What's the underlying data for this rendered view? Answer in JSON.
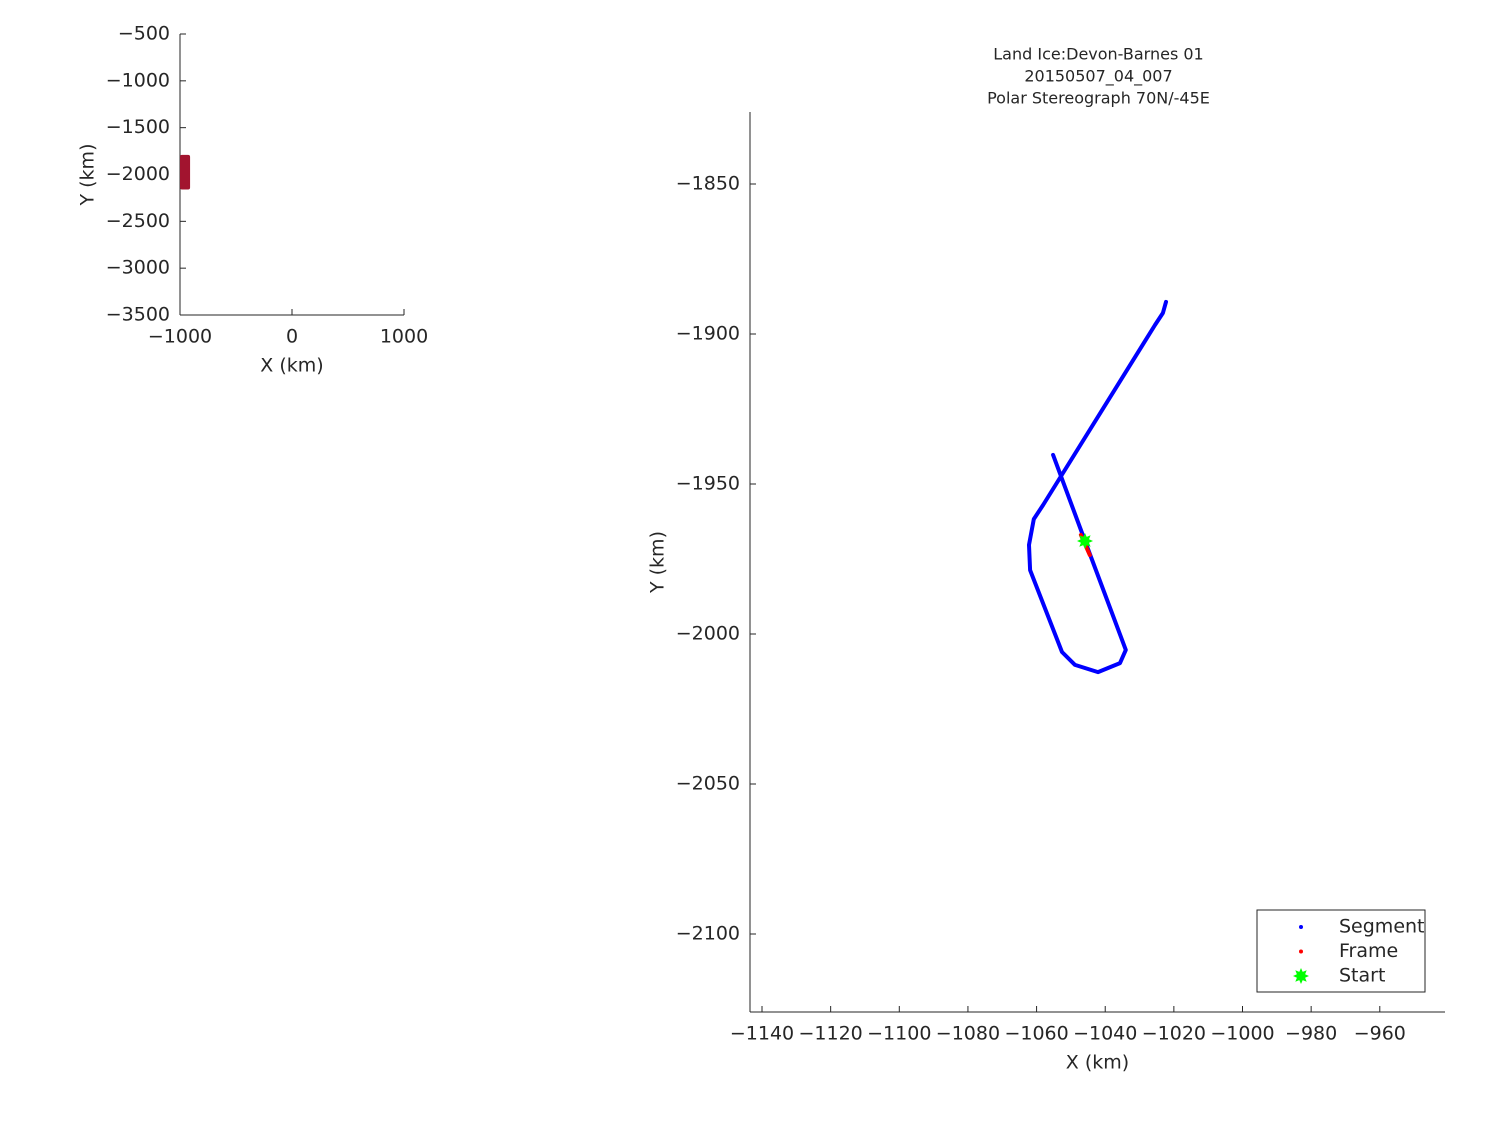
{
  "chart_data": [
    {
      "type": "rect",
      "x": [
        -1000,
        -910
      ],
      "values": [
        -2160,
        -1790
      ],
      "color": "#a2142f",
      "xlabel": "X (km)",
      "ylabel": "Y (km)",
      "xlim": [
        -1000,
        1000
      ],
      "ylim": [
        -3500,
        -500
      ],
      "xticks": [
        {
          "value": -1000,
          "label": "−1000"
        },
        0,
        1000
      ],
      "yticks": [
        {
          "value": -500,
          "label": "−500"
        },
        {
          "value": -1000,
          "label": "−1000"
        },
        {
          "value": -1500,
          "label": "−1500"
        },
        {
          "value": -2000,
          "label": "−2000"
        },
        {
          "value": -2500,
          "label": "−2500"
        },
        {
          "value": -3000,
          "label": "−3000"
        },
        {
          "value": -3500,
          "label": "−3500"
        }
      ]
    },
    {
      "type": "line",
      "title": [
        "Land Ice:Devon-Barnes 01",
        "20150507_04_007",
        "Polar Stereograph 70N/-45E"
      ],
      "xlabel": "X (km)",
      "ylabel": "Y (km)",
      "xlim": [
        -1143.5,
        -941
      ],
      "ylim": [
        -2126,
        -1826
      ],
      "xticks": [
        {
          "value": -1140,
          "label": "−1140"
        },
        {
          "value": -1120,
          "label": "−1120"
        },
        {
          "value": -1100,
          "label": "−1100"
        },
        {
          "value": -1080,
          "label": "−1080"
        },
        {
          "value": -1060,
          "label": "−1060"
        },
        {
          "value": -1040,
          "label": "−1040"
        },
        {
          "value": -1020,
          "label": "−1020"
        },
        {
          "value": -1000,
          "label": "−1000"
        },
        {
          "value": -980,
          "label": "−980"
        },
        {
          "value": -960,
          "label": "−960"
        }
      ],
      "yticks": [
        {
          "value": -1850,
          "label": "−1850"
        },
        {
          "value": -1900,
          "label": "−1900"
        },
        {
          "value": -1950,
          "label": "−1950"
        },
        {
          "value": -2000,
          "label": "−2000"
        },
        {
          "value": -2050,
          "label": "−2050"
        },
        {
          "value": -2100,
          "label": "−2100"
        }
      ],
      "legend": "southeast",
      "series": [
        {
          "name": "Segment",
          "color": "#0000ff",
          "marker": "dot",
          "x": [
            -1055.2,
            -1045.9,
            -1034,
            -1035.7,
            -1042.1,
            -1048.8,
            -1052.6,
            -1061.9,
            -1062.2,
            -1060.8,
            -1058.1,
            -1025.5,
            -1023.2,
            -1022.3
          ],
          "values": [
            -1940.3,
            -1969,
            -2005.3,
            -2009.7,
            -2012.7,
            -2010.3,
            -2006,
            -1978.7,
            -1970.3,
            -1961.7,
            -1957,
            -1897,
            -1893,
            -1889.3
          ]
        },
        {
          "name": "Frame",
          "color": "#ff0000",
          "marker": "dot",
          "x": [
            -1047.1,
            -1044.5
          ],
          "values": [
            -1967,
            -1973.7
          ]
        },
        {
          "name": "Start",
          "color": "#00ff00",
          "marker": "star",
          "x": [
            -1045.9
          ],
          "values": [
            -1969
          ]
        }
      ]
    }
  ]
}
